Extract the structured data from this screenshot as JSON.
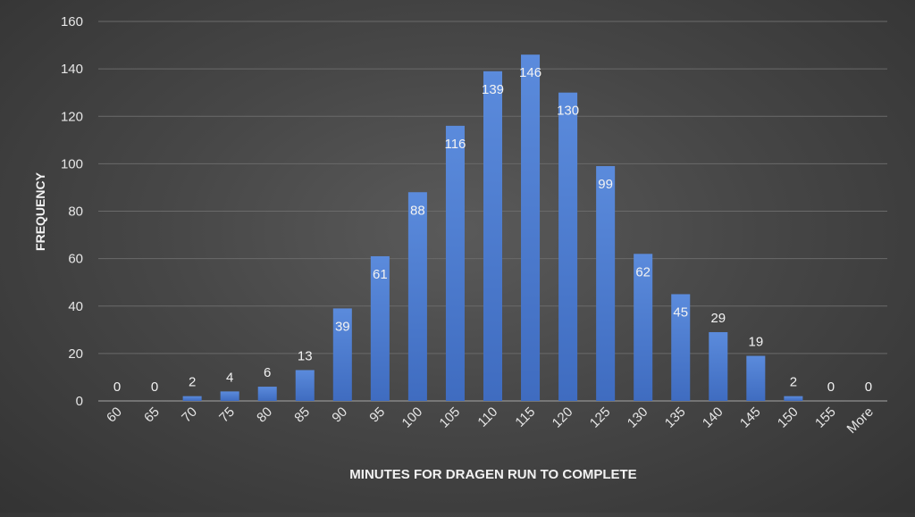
{
  "chart_data": {
    "type": "bar",
    "title": "",
    "xlabel": "MINUTES FOR DRAGEN RUN TO COMPLETE",
    "ylabel": "FREQUENCY",
    "categories": [
      "60",
      "65",
      "70",
      "75",
      "80",
      "85",
      "90",
      "95",
      "100",
      "105",
      "110",
      "115",
      "120",
      "125",
      "130",
      "135",
      "140",
      "145",
      "150",
      "155",
      "More"
    ],
    "values": [
      0,
      0,
      2,
      4,
      6,
      13,
      39,
      61,
      88,
      116,
      139,
      146,
      130,
      99,
      62,
      45,
      29,
      19,
      2,
      0,
      0
    ],
    "ylim": [
      0,
      160
    ],
    "yticks": [
      0,
      20,
      40,
      60,
      80,
      100,
      120,
      140,
      160
    ],
    "grid": true,
    "legend": "none",
    "data_labels": true,
    "bar_color": "#4472c4",
    "bar_color_light": "#5b8bdc",
    "background_color": "#474747"
  }
}
